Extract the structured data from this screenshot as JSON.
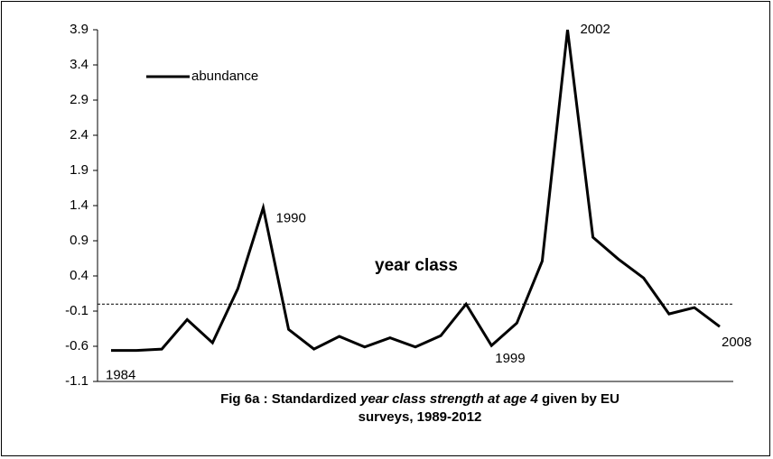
{
  "chart_data": {
    "type": "line",
    "categories": [
      null,
      null,
      null,
      null,
      null,
      null,
      null,
      null,
      null,
      null,
      null,
      null,
      null,
      null,
      null,
      null,
      null,
      null,
      null,
      null,
      null,
      null,
      null,
      null,
      null
    ],
    "series": [
      {
        "name": "abundance",
        "color": "#000000",
        "values": [
          -0.66,
          -0.66,
          -0.64,
          -0.22,
          -0.55,
          0.22,
          1.37,
          -0.36,
          -0.64,
          -0.46,
          -0.61,
          -0.48,
          -0.61,
          -0.45,
          0.0,
          -0.59,
          -0.27,
          0.61,
          3.9,
          0.95,
          0.64,
          0.37,
          -0.14,
          -0.05,
          -0.32
        ]
      }
    ],
    "ylim": [
      -1.1,
      3.9
    ],
    "yticks": [
      3.9,
      3.4,
      2.9,
      2.4,
      1.9,
      1.4,
      0.9,
      0.4,
      -0.1,
      -0.6,
      -1.1
    ],
    "reference_line": 0,
    "point_labels": [
      {
        "text": "1984",
        "index": 0
      },
      {
        "text": "1990",
        "index": 6
      },
      {
        "text": "1999",
        "index": 15
      },
      {
        "text": "2002",
        "index": 18
      },
      {
        "text": "2008",
        "index": 24
      }
    ],
    "annotation": "year class",
    "title": [
      "Fig 6a : Standardized ",
      "year class strength at age 4",
      " given by EU",
      "surveys, 1989-2012"
    ],
    "legend": "top-left"
  }
}
